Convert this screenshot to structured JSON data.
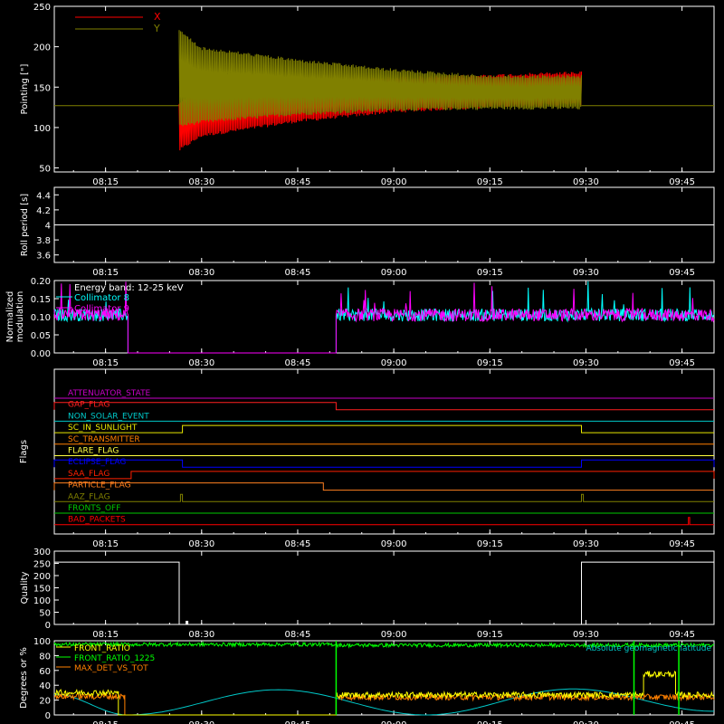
{
  "time_ticks": [
    "08:15",
    "08:30",
    "08:45",
    "09:00",
    "09:15",
    "09:30",
    "09:45"
  ],
  "time_tick_minutes": [
    15,
    30,
    45,
    60,
    75,
    90,
    105
  ],
  "time_range_minutes": [
    7,
    110
  ],
  "chart_data": [
    {
      "type": "line",
      "ylabel": "Pointing [\"]",
      "ylim": [
        45,
        250
      ],
      "yticks": [
        50,
        100,
        150,
        200,
        250
      ],
      "legend": [
        "X",
        "Y"
      ],
      "colors": {
        "X": "#ff0000",
        "Y": "#808000",
        "baseline": "#808000"
      },
      "baseline_value": 127,
      "active_start": 26.5,
      "active_end": 89.3,
      "series": [
        {
          "name": "X",
          "envelope": {
            "t": [
              26.5,
              30,
              45,
              60,
              75,
              89.3
            ],
            "low": [
              70,
              88,
              106,
              118,
              124,
              127
            ],
            "high": [
              132,
              155,
              160,
              163,
              166,
              170
            ]
          }
        },
        {
          "name": "Y",
          "envelope": {
            "t": [
              26.5,
              30,
              45,
              60,
              75,
              89.3
            ],
            "low": [
              100,
              105,
              115,
              120,
              122,
              122
            ],
            "high": [
              222,
              200,
              185,
              173,
              165,
              165
            ]
          }
        }
      ]
    },
    {
      "type": "line",
      "ylabel": "Roll period [s]",
      "ylim": [
        3.5,
        4.5
      ],
      "yticks": [
        3.6,
        3.8,
        4.0,
        4.2,
        4.4
      ],
      "value": 4.0,
      "color": "#ffffff"
    },
    {
      "type": "line",
      "ylabel": [
        "Normalized",
        "modulation"
      ],
      "ylim": [
        0,
        0.2
      ],
      "yticks": [
        "0.00",
        "0.05",
        "0.10",
        "0.15",
        "0.20"
      ],
      "annotations": [
        "Energy band: 12-25 keV"
      ],
      "legend": [
        {
          "name": "Collimator 8",
          "color": "#00ffff"
        },
        {
          "name": "Collimator 9",
          "color": "#ff00ff"
        }
      ],
      "noisy_level": 0.105,
      "noisy_segments": [
        [
          7,
          18.5
        ],
        [
          51,
          110
        ]
      ],
      "zero_segment": [
        18.5,
        51
      ]
    },
    {
      "type": "line",
      "ylabel": "Flags",
      "flags": [
        {
          "name": "ATTENUATOR_STATE",
          "color": "#c800c8",
          "high": []
        },
        {
          "name": "GAP_FLAG",
          "color": "#ff2020",
          "high": [
            [
              7,
              51
            ]
          ]
        },
        {
          "name": "NON_SOLAR_EVENT",
          "color": "#00c8c8",
          "high": []
        },
        {
          "name": "SC_IN_SUNLIGHT",
          "color": "#e8e800",
          "high": [
            [
              27,
              89.3
            ]
          ]
        },
        {
          "name": "SC_TRANSMITTER",
          "color": "#ff7f00",
          "high": []
        },
        {
          "name": "FLARE_FLAG",
          "color": "#ffff40",
          "high": []
        },
        {
          "name": "ECLIPSE_FLAG",
          "color": "#0000ff",
          "high": [
            [
              7,
              27
            ],
            [
              89.3,
              110
            ]
          ]
        },
        {
          "name": "SAA_FLAG",
          "color": "#ff2000",
          "high": [
            [
              19,
              110
            ]
          ]
        },
        {
          "name": "PARTICLE_FLAG",
          "color": "#ff8020",
          "high": [
            [
              7,
              49
            ]
          ]
        },
        {
          "name": "AAZ_FLAG",
          "color": "#808000",
          "high": [
            [
              26.7,
              27.0
            ],
            [
              89.3,
              89.6
            ]
          ]
        },
        {
          "name": "FRONTS_OFF",
          "color": "#00c800",
          "high": []
        },
        {
          "name": "BAD_PACKETS",
          "color": "#ff0000",
          "high": [
            [
              106,
              106.2
            ]
          ]
        }
      ]
    },
    {
      "type": "line",
      "ylabel": "Quality",
      "ylim": [
        0,
        300
      ],
      "yticks": [
        0,
        50,
        100,
        150,
        200,
        250,
        300
      ],
      "color": "#ffffff",
      "segments": [
        [
          7,
          26.5,
          255
        ],
        [
          26.5,
          89.3,
          0
        ],
        [
          89.3,
          110,
          255
        ]
      ],
      "spike": {
        "t": 27.5,
        "value": 15
      }
    },
    {
      "type": "line",
      "ylabel": "Degrees or %",
      "ylim": [
        0,
        100
      ],
      "yticks": [
        0,
        20,
        40,
        60,
        80,
        100
      ],
      "legend": [
        {
          "name": "FRONT_RATIO",
          "color": "#ffff00"
        },
        {
          "name": "FRONT_RATIO_1225",
          "color": "#00ff00"
        },
        {
          "name": "MAX_DET_VS_TOT",
          "color": "#ff8000"
        }
      ],
      "annotation": {
        "text": "Absolute geomagnetic latitude",
        "color": "#00c8c8"
      },
      "series_levels": {
        "FRONT_RATIO": [
          [
            7,
            17,
            30
          ],
          [
            17,
            51,
            0
          ],
          [
            51,
            99,
            27
          ],
          [
            99,
            104,
            55
          ],
          [
            104,
            110,
            27
          ]
        ],
        "FRONT_RATIO_1225": [
          [
            7,
            51,
            95
          ],
          [
            51,
            110,
            94
          ]
        ],
        "MAX_DET_VS_TOT": [
          [
            7,
            18,
            25
          ],
          [
            18,
            51,
            0
          ],
          [
            51,
            110,
            24
          ]
        ]
      },
      "latitude": {
        "t": [
          7,
          18.5,
          42,
          65,
          88,
          110
        ],
        "v": [
          28,
          0,
          34,
          0,
          35,
          5
        ]
      }
    }
  ]
}
